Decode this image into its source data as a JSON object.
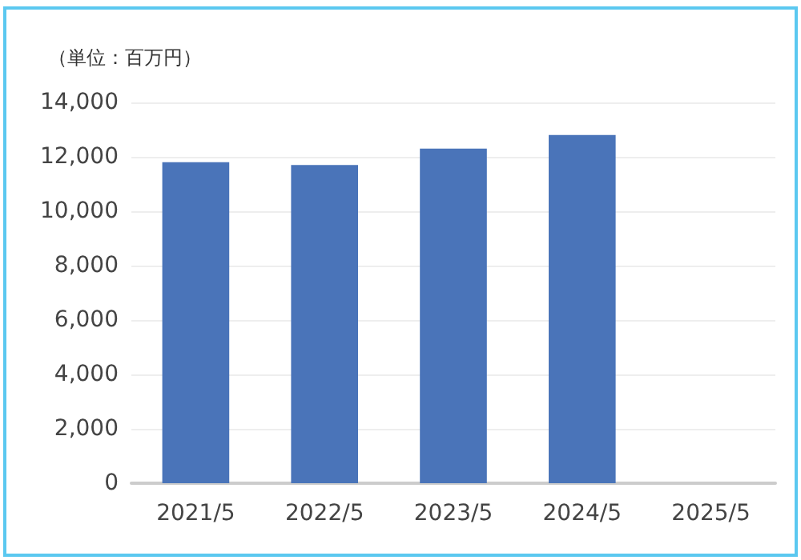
{
  "chart_data": {
    "type": "bar",
    "ylabel": "（単位：百万円）",
    "categories": [
      "2021/5",
      "2022/5",
      "2023/5",
      "2024/5",
      "2025/5"
    ],
    "values": [
      11800,
      11700,
      12300,
      12800,
      null
    ],
    "color": "#4a74b9",
    "ylim": [
      0,
      14000
    ],
    "yticks": [
      0,
      {
        "value": 2000,
        "label": "2,000"
      },
      {
        "value": 4000,
        "label": "4,000"
      },
      {
        "value": 6000,
        "label": "6,000"
      },
      {
        "value": 8000,
        "label": "8,000"
      },
      {
        "value": 10000,
        "label": "10,000"
      },
      {
        "value": 12000,
        "label": "12,000"
      },
      {
        "value": 14000,
        "label": "14,000"
      }
    ],
    "grid": "y"
  }
}
